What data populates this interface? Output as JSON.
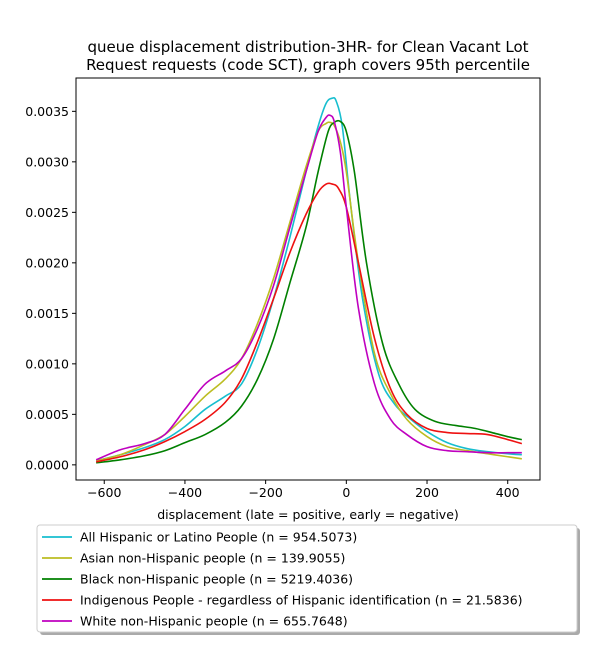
{
  "chart_data": {
    "type": "line",
    "title_lines": [
      "queue displacement distribution-3HR-  for Clean Vacant Lot",
      "Request  requests (code SCT), graph covers 95th percentile"
    ],
    "xlabel": "displacement (late = positive, early = negative)",
    "ylabel": "",
    "xlim": [
      -670,
      480
    ],
    "ylim": [
      -0.00015,
      0.00383
    ],
    "x_ticks": [
      -600,
      -400,
      -200,
      0,
      200,
      400
    ],
    "x_tick_labels": [
      "−600",
      "−400",
      "−200",
      "0",
      "200",
      "400"
    ],
    "y_ticks": [
      0.0,
      0.0005,
      0.001,
      0.0015,
      0.002,
      0.0025,
      0.003,
      0.0035
    ],
    "y_tick_labels": [
      "0.0000",
      "0.0005",
      "0.0010",
      "0.0015",
      "0.0020",
      "0.0025",
      "0.0030",
      "0.0035"
    ],
    "grid": false,
    "legend_position": "below",
    "series": [
      {
        "name": "All Hispanic or Latino People (n = 954.5073)",
        "color": "#17becf",
        "x": [
          -620,
          -560,
          -500,
          -450,
          -400,
          -350,
          -300,
          -260,
          -220,
          -180,
          -140,
          -100,
          -70,
          -50,
          -35,
          -25,
          -10,
          10,
          40,
          80,
          120,
          160,
          200,
          250,
          300,
          350,
          400,
          435
        ],
        "y": [
          4e-05,
          0.0001,
          0.00017,
          0.00025,
          0.00038,
          0.00055,
          0.00068,
          0.0008,
          0.00115,
          0.00165,
          0.00225,
          0.0029,
          0.00335,
          0.00358,
          0.00363,
          0.0036,
          0.00335,
          0.0026,
          0.00165,
          0.0009,
          0.0006,
          0.00045,
          0.00033,
          0.00022,
          0.00016,
          0.00013,
          0.00011,
          0.0001
        ]
      },
      {
        "name": "Asian non-Hispanic people (n = 139.9055)",
        "color": "#bcbd22",
        "x": [
          -620,
          -560,
          -500,
          -450,
          -400,
          -350,
          -300,
          -260,
          -220,
          -180,
          -140,
          -100,
          -70,
          -50,
          -40,
          -30,
          -15,
          0,
          30,
          70,
          110,
          150,
          200,
          250,
          300,
          350,
          400,
          435
        ],
        "y": [
          4e-05,
          0.0001,
          0.0002,
          0.0003,
          0.00048,
          0.00068,
          0.00085,
          0.00105,
          0.0014,
          0.00185,
          0.0024,
          0.00295,
          0.0033,
          0.00338,
          0.00339,
          0.00336,
          0.0032,
          0.0029,
          0.002,
          0.0011,
          0.0007,
          0.00045,
          0.00028,
          0.00018,
          0.00014,
          0.00011,
          8e-05,
          6e-05
        ]
      },
      {
        "name": "Black non-Hispanic people (n = 5219.4036)",
        "color": "#008000",
        "x": [
          -620,
          -560,
          -500,
          -450,
          -400,
          -350,
          -300,
          -260,
          -220,
          -180,
          -140,
          -100,
          -70,
          -45,
          -30,
          -15,
          0,
          20,
          50,
          90,
          130,
          170,
          220,
          270,
          320,
          370,
          410,
          435
        ],
        "y": [
          2e-05,
          5e-05,
          9e-05,
          0.00014,
          0.00022,
          0.0003,
          0.00042,
          0.00058,
          0.00085,
          0.00125,
          0.0018,
          0.00235,
          0.0029,
          0.0033,
          0.00339,
          0.0034,
          0.0033,
          0.0029,
          0.002,
          0.0012,
          0.0008,
          0.00055,
          0.00043,
          0.00039,
          0.00036,
          0.00031,
          0.00027,
          0.00025
        ]
      },
      {
        "name": "Indigenous People - regardless of Hispanic identification (n = 21.5836)",
        "color": "#ee1111",
        "x": [
          -620,
          -560,
          -500,
          -450,
          -400,
          -350,
          -300,
          -260,
          -220,
          -180,
          -140,
          -100,
          -70,
          -50,
          -35,
          -20,
          0,
          30,
          70,
          110,
          150,
          200,
          250,
          300,
          350,
          400,
          435
        ],
        "y": [
          3e-05,
          8e-05,
          0.00015,
          0.00023,
          0.00033,
          0.00045,
          0.00062,
          0.00085,
          0.00122,
          0.00165,
          0.0021,
          0.00248,
          0.0027,
          0.00278,
          0.00278,
          0.00274,
          0.00255,
          0.002,
          0.00125,
          0.00075,
          0.0005,
          0.00036,
          0.00032,
          0.00031,
          0.0003,
          0.00025,
          0.00021
        ]
      },
      {
        "name": "White non-Hispanic people (n = 655.7648)",
        "color": "#bf00bf",
        "x": [
          -620,
          -560,
          -500,
          -450,
          -400,
          -350,
          -300,
          -260,
          -220,
          -180,
          -140,
          -100,
          -70,
          -50,
          -40,
          -30,
          -15,
          0,
          30,
          70,
          110,
          150,
          200,
          250,
          300,
          350,
          400,
          435
        ],
        "y": [
          5e-05,
          0.00015,
          0.00021,
          0.0003,
          0.00055,
          0.0008,
          0.00093,
          0.00105,
          0.00135,
          0.00178,
          0.00235,
          0.0029,
          0.0033,
          0.00344,
          0.00346,
          0.0034,
          0.0031,
          0.00255,
          0.00155,
          0.0008,
          0.00045,
          0.0003,
          0.00018,
          0.00014,
          0.00013,
          0.00012,
          0.00012,
          0.00012
        ]
      }
    ]
  }
}
